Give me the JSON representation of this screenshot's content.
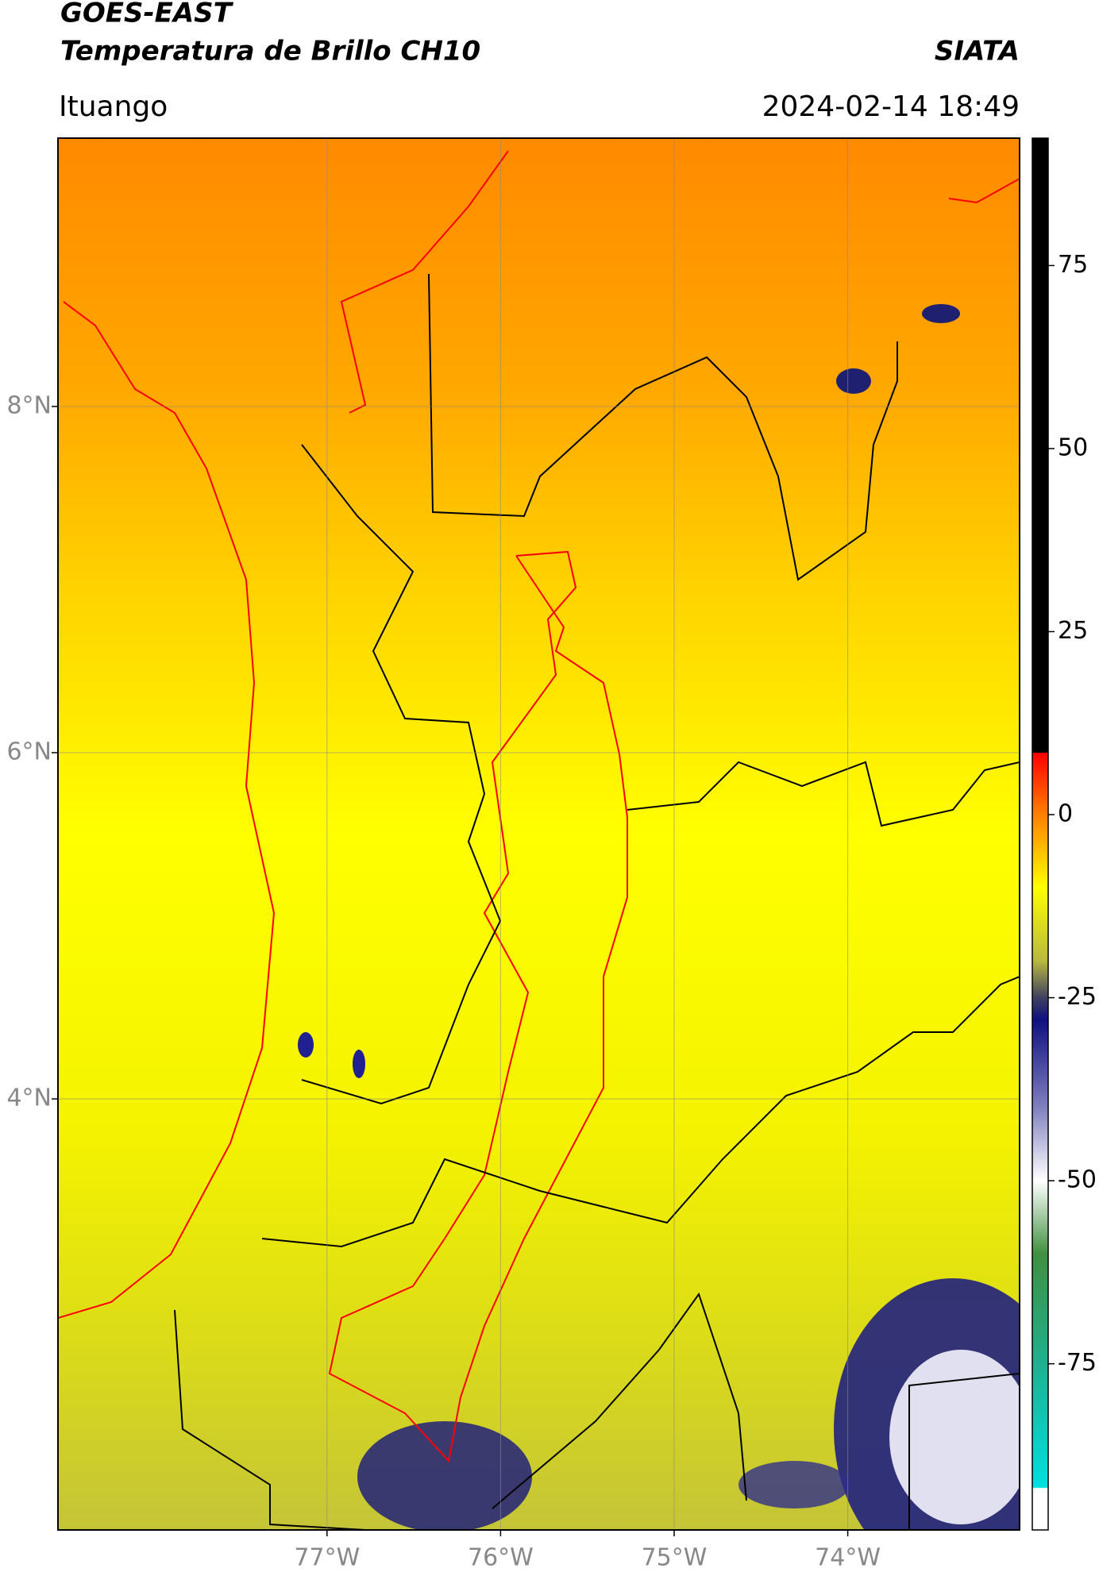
{
  "header": {
    "title": "GOES-EAST",
    "subtitle": "Temperatura de Brillo CH10",
    "source": "SIATA",
    "place": "Ituango",
    "datetime": "2024-02-14 18:49"
  },
  "map": {
    "xlim": [
      -78.55,
      -73.01
    ],
    "ylim": [
      1.51,
      9.55
    ],
    "xticks": [
      {
        "value": -77,
        "label": "77°W"
      },
      {
        "value": -76,
        "label": "76°W"
      },
      {
        "value": -75,
        "label": "75°W"
      },
      {
        "value": -74,
        "label": "74°W"
      }
    ],
    "yticks": [
      {
        "value": 8,
        "label": "8°N"
      },
      {
        "value": 6,
        "label": "6°N"
      },
      {
        "value": 4,
        "label": "4°N"
      }
    ],
    "grid": true
  },
  "colorbar": {
    "ylim": [
      -97.7,
      92.4
    ],
    "yticks": [
      75,
      50,
      25,
      0,
      -25,
      -50,
      -75
    ],
    "colormap": [
      [
        92.4,
        "#000000"
      ],
      [
        8.5,
        "#000000"
      ],
      [
        8.4,
        "#ff0000"
      ],
      [
        0,
        "#ff8000"
      ],
      [
        -10,
        "#ffff00"
      ],
      [
        -20,
        "#b8b840"
      ],
      [
        -25,
        "#404060"
      ],
      [
        -28,
        "#101080"
      ],
      [
        -40,
        "#8080c0"
      ],
      [
        -50,
        "#ffffff"
      ],
      [
        -60,
        "#409040"
      ],
      [
        -75,
        "#20b090"
      ],
      [
        -91.9,
        "#00e0e0"
      ],
      [
        -92,
        "#ffffff"
      ],
      [
        -97.7,
        "#ffffff"
      ]
    ]
  }
}
